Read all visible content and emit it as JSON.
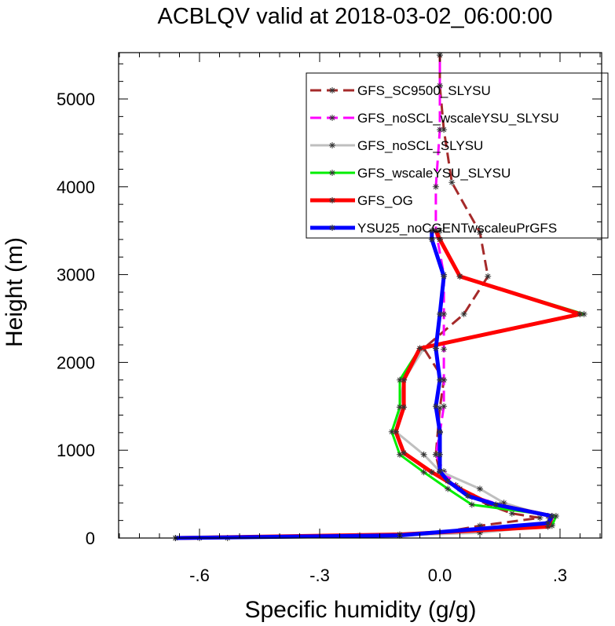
{
  "chart_data": {
    "type": "line",
    "title": "ACBLQV valid at 2018-03-02_06:00:00",
    "xlabel": "Specific humidity (g/g)",
    "ylabel": "Height (m)",
    "xlim": [
      -0.8,
      0.41
    ],
    "ylim": [
      0,
      5500
    ],
    "xticks": [
      -0.6,
      -0.3,
      0.0,
      0.3
    ],
    "xtick_labels": [
      "-.6",
      "-.3",
      "0.0",
      ".3"
    ],
    "yticks": [
      0,
      1000,
      2000,
      3000,
      4000,
      5000
    ],
    "ytick_labels": [
      "0",
      "1000",
      "2000",
      "3000",
      "4000",
      "5000"
    ],
    "legend_position": "top-right",
    "series": [
      {
        "name": "GFS_SC9500_SLYSU",
        "color": "#a52a2a",
        "dash": "dashed",
        "width": 3,
        "points": [
          [
            -0.53,
            0
          ],
          [
            0.0,
            60
          ],
          [
            0.1,
            140
          ],
          [
            0.25,
            230
          ],
          [
            0.18,
            280
          ],
          [
            0.12,
            380
          ],
          [
            0.08,
            470
          ],
          [
            0.05,
            560
          ],
          [
            0.02,
            650
          ],
          [
            0.0,
            750
          ],
          [
            -0.01,
            950
          ],
          [
            0.0,
            1480
          ],
          [
            0.01,
            1800
          ],
          [
            -0.04,
            2160
          ],
          [
            0.06,
            2550
          ],
          [
            0.12,
            2980
          ],
          [
            0.1,
            3480
          ],
          [
            0.03,
            4050
          ],
          [
            0.01,
            4650
          ],
          [
            0.0,
            5150
          ],
          [
            0.0,
            5500
          ]
        ]
      },
      {
        "name": "GFS_noSCL_wscaleYSU_SLYSU",
        "color": "#ff00ff",
        "dash": "dashed",
        "width": 3,
        "points": [
          [
            -0.66,
            0
          ],
          [
            -0.2,
            30
          ],
          [
            0.05,
            70
          ],
          [
            0.28,
            160
          ],
          [
            0.28,
            250
          ],
          [
            0.15,
            380
          ],
          [
            0.08,
            480
          ],
          [
            0.04,
            600
          ],
          [
            0.01,
            760
          ],
          [
            -0.01,
            950
          ],
          [
            0.0,
            1200
          ],
          [
            0.01,
            1500
          ],
          [
            0.01,
            1800
          ],
          [
            0.01,
            2150
          ],
          [
            0.01,
            2550
          ],
          [
            0.01,
            3000
          ],
          [
            -0.01,
            3500
          ],
          [
            -0.01,
            4000
          ],
          [
            0.0,
            4650
          ],
          [
            0.0,
            5150
          ],
          [
            0.0,
            5500
          ]
        ]
      },
      {
        "name": "GFS_noSCL_SLYSU",
        "color": "#bfbfbf",
        "dash": "solid",
        "width": 3,
        "points": [
          [
            -0.6,
            0
          ],
          [
            -0.1,
            30
          ],
          [
            0.1,
            60
          ],
          [
            0.27,
            140
          ],
          [
            0.27,
            250
          ],
          [
            0.16,
            400
          ],
          [
            0.1,
            560
          ],
          [
            0.0,
            760
          ],
          [
            -0.04,
            950
          ],
          [
            -0.11,
            1210
          ],
          [
            -0.1,
            1490
          ],
          [
            -0.09,
            1800
          ],
          [
            -0.04,
            2160
          ],
          [
            0.35,
            2550
          ],
          [
            0.05,
            2980
          ],
          [
            0.0,
            3400
          ],
          [
            0.0,
            3500
          ]
        ]
      },
      {
        "name": "GFS_wscaleYSU_SLYSU",
        "color": "#00ee00",
        "dash": "solid",
        "width": 3,
        "points": [
          [
            -0.66,
            0
          ],
          [
            -0.1,
            40
          ],
          [
            0.28,
            140
          ],
          [
            0.29,
            250
          ],
          [
            0.08,
            380
          ],
          [
            0.02,
            560
          ],
          [
            -0.04,
            750
          ],
          [
            -0.1,
            950
          ],
          [
            -0.12,
            1210
          ],
          [
            -0.1,
            1490
          ],
          [
            -0.1,
            1800
          ],
          [
            -0.05,
            2160
          ],
          [
            0.36,
            2550
          ],
          [
            0.05,
            2980
          ],
          [
            0.0,
            3400
          ],
          [
            -0.01,
            3500
          ]
        ]
      },
      {
        "name": "GFS_OG",
        "color": "#ff0000",
        "dash": "solid",
        "width": 5,
        "points": [
          [
            -0.66,
            0
          ],
          [
            -0.1,
            40
          ],
          [
            0.27,
            130
          ],
          [
            0.28,
            250
          ],
          [
            0.12,
            400
          ],
          [
            0.05,
            560
          ],
          [
            -0.02,
            750
          ],
          [
            -0.09,
            970
          ],
          [
            -0.11,
            1210
          ],
          [
            -0.09,
            1490
          ],
          [
            -0.09,
            1800
          ],
          [
            -0.05,
            2160
          ],
          [
            0.35,
            2550
          ],
          [
            0.05,
            2980
          ],
          [
            0.0,
            3400
          ],
          [
            -0.01,
            3500
          ]
        ]
      },
      {
        "name": "YSU25_noCGENTwscaleuPrGFS",
        "color": "#0000ff",
        "dash": "solid",
        "width": 5,
        "points": [
          [
            -0.66,
            0
          ],
          [
            -0.1,
            30
          ],
          [
            0.27,
            170
          ],
          [
            0.28,
            250
          ],
          [
            0.14,
            380
          ],
          [
            0.07,
            480
          ],
          [
            0.02,
            650
          ],
          [
            0.0,
            760
          ],
          [
            0.0,
            950
          ],
          [
            0.0,
            1210
          ],
          [
            -0.01,
            1500
          ],
          [
            0.0,
            1800
          ],
          [
            -0.01,
            2160
          ],
          [
            0.0,
            2550
          ],
          [
            0.01,
            2980
          ],
          [
            -0.02,
            3400
          ],
          [
            -0.02,
            3500
          ]
        ]
      }
    ]
  }
}
